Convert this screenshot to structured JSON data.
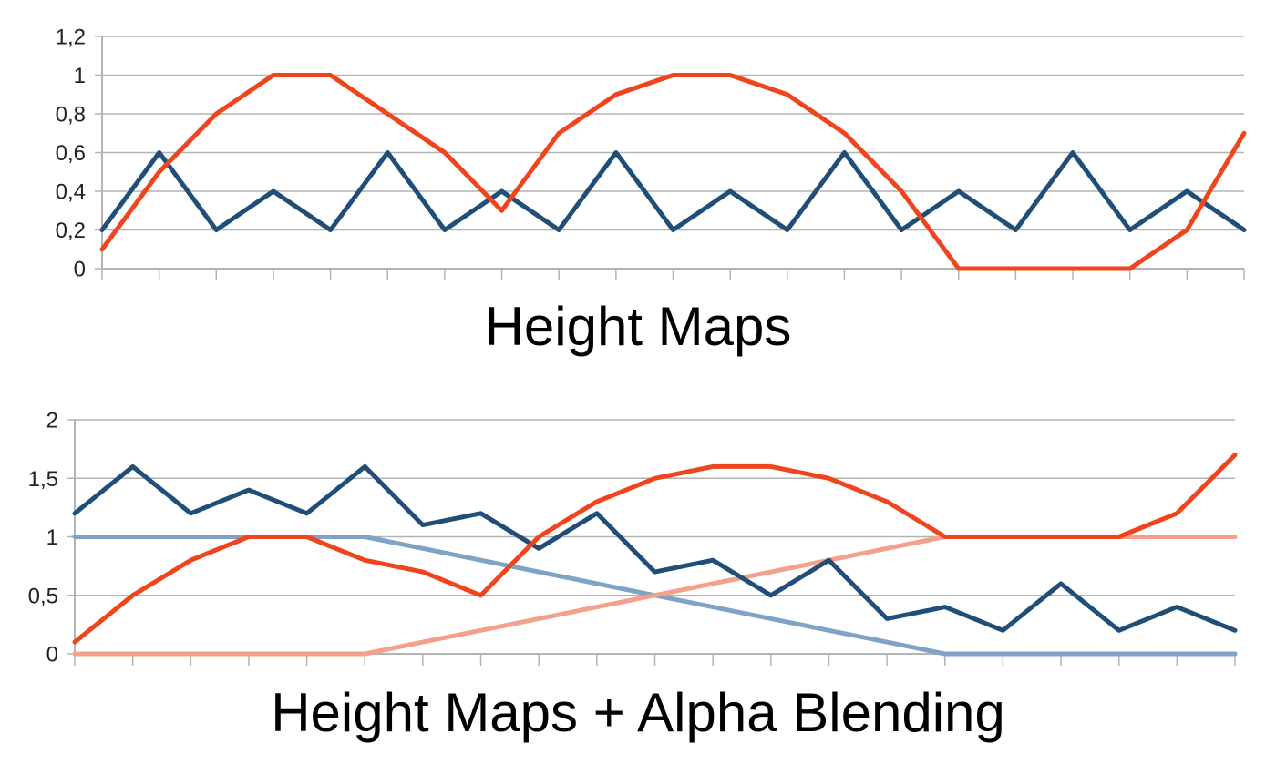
{
  "chart_data": [
    {
      "type": "line",
      "title": "Height Maps",
      "x": [
        1,
        2,
        3,
        4,
        5,
        6,
        7,
        8,
        9,
        10,
        11,
        12,
        13,
        14,
        15,
        16,
        17,
        18,
        19,
        20,
        21
      ],
      "ylim": [
        0,
        1.2
      ],
      "yticks": [
        0,
        0.2,
        0.4,
        0.6,
        0.8,
        1,
        1.2
      ],
      "ytick_labels": [
        "0",
        "0,2",
        "0,4",
        "0,6",
        "0,8",
        "1",
        "1,2"
      ],
      "grid": true,
      "series": [
        {
          "color": "#1f4e79",
          "values": [
            0.2,
            0.6,
            0.2,
            0.4,
            0.2,
            0.6,
            0.2,
            0.4,
            0.2,
            0.6,
            0.2,
            0.4,
            0.2,
            0.6,
            0.2,
            0.4,
            0.2,
            0.6,
            0.2,
            0.4,
            0.2
          ]
        },
        {
          "color": "#f0441c",
          "values": [
            0.1,
            0.5,
            0.8,
            1,
            1,
            0.8,
            0.6,
            0.3,
            0.7,
            0.9,
            1,
            1,
            0.9,
            0.7,
            0.4,
            0,
            0,
            0,
            0,
            0.2,
            0.7
          ]
        }
      ]
    },
    {
      "type": "line",
      "title": "Height Maps + Alpha Blending",
      "x": [
        1,
        2,
        3,
        4,
        5,
        6,
        7,
        8,
        9,
        10,
        11,
        12,
        13,
        14,
        15,
        16,
        17,
        18,
        19,
        20,
        21
      ],
      "ylim": [
        0,
        2
      ],
      "yticks": [
        0,
        0.5,
        1,
        1.5,
        2
      ],
      "ytick_labels": [
        "0",
        "0,5",
        "1",
        "1,5",
        "2"
      ],
      "grid": true,
      "series": [
        {
          "color": "#7fa3c6",
          "values": [
            1,
            1,
            1,
            1,
            1,
            1,
            0.9,
            0.8,
            0.7,
            0.6,
            0.5,
            0.4,
            0.3,
            0.2,
            0.1,
            0,
            0,
            0,
            0,
            0,
            0
          ]
        },
        {
          "color": "#f4a08a",
          "values": [
            0,
            0,
            0,
            0,
            0,
            0,
            0.1,
            0.2,
            0.3,
            0.4,
            0.5,
            0.6,
            0.7,
            0.8,
            0.9,
            1,
            1,
            1,
            1,
            1,
            1
          ]
        },
        {
          "color": "#1f4e79",
          "values": [
            1.2,
            1.6,
            1.2,
            1.4,
            1.2,
            1.6,
            1.1,
            1.2,
            0.9,
            1.2,
            0.7,
            0.8,
            0.5,
            0.8,
            0.3,
            0.4,
            0.2,
            0.6,
            0.2,
            0.4,
            0.2
          ]
        },
        {
          "color": "#f0441c",
          "values": [
            0.1,
            0.5,
            0.8,
            1,
            1,
            0.8,
            0.7,
            0.5,
            1,
            1.3,
            1.5,
            1.6,
            1.6,
            1.5,
            1.3,
            1,
            1,
            1,
            1,
            1.2,
            1.7
          ]
        }
      ]
    }
  ]
}
